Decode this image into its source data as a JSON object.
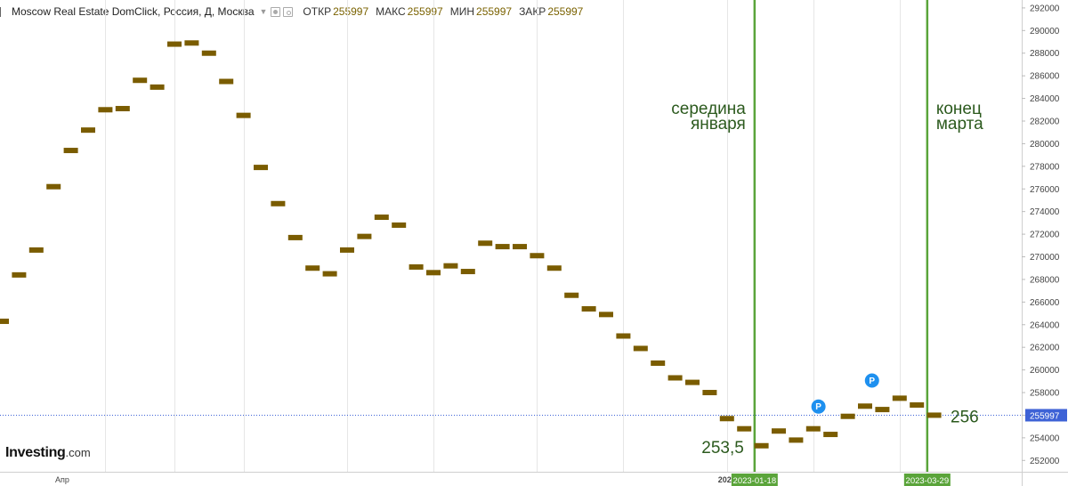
{
  "header": {
    "title": "Moscow Real Estate DomClick, Россия, Д, Москва",
    "open_label": "ОТКР",
    "open_value": "255997",
    "high_label": "МАКС",
    "high_value": "255997",
    "low_label": "МИН",
    "low_value": "255997",
    "close_label": "ЗАКР",
    "close_value": "255997"
  },
  "logo": {
    "brand": "Investing",
    "suffix": ".com"
  },
  "colors": {
    "bar": "#7a5c00",
    "vline": "#5aa43a",
    "annotation_text": "#2c5a1e",
    "last_price": "#3d62d6",
    "pin": "#1e90ef",
    "grid": "#e6e6e6"
  },
  "annotations": {
    "mid_january_line1": "середина",
    "mid_january_line2": "января",
    "end_march_line1": "конец",
    "end_march_line2": "марта",
    "low_value": "253,5",
    "last_value": "256"
  },
  "markers": {
    "pin_label": "P"
  },
  "chart_data": {
    "type": "line",
    "style": "horizontal-tick markers",
    "ylim": [
      251000,
      292700
    ],
    "y_ticks": [
      252000,
      254000,
      256000,
      258000,
      260000,
      262000,
      264000,
      266000,
      268000,
      270000,
      272000,
      274000,
      276000,
      278000,
      280000,
      282000,
      284000,
      286000,
      288000,
      290000,
      292000
    ],
    "x_labels": [
      {
        "label": "Апр",
        "index": 3.5
      },
      {
        "label": "2023",
        "index": 42
      }
    ],
    "highlighted_dates": [
      {
        "label": "2023-01-18",
        "index": 43.6
      },
      {
        "label": "2023-03-29",
        "index": 53.6
      }
    ],
    "last_price": 255997,
    "values": [
      264300,
      268400,
      270600,
      276200,
      279400,
      281200,
      283000,
      283100,
      285600,
      285000,
      288800,
      288900,
      288000,
      285500,
      282500,
      277900,
      274700,
      271700,
      269000,
      268500,
      270600,
      271800,
      273500,
      272800,
      269100,
      268600,
      269200,
      268700,
      271200,
      270900,
      270900,
      270100,
      269000,
      266600,
      265400,
      264900,
      263000,
      261900,
      260600,
      259300,
      258900,
      258000,
      255700,
      254800,
      253300,
      254600,
      253800,
      254800,
      254300,
      255900,
      256800,
      256500,
      257500,
      256900,
      256000
    ],
    "pins": [
      {
        "index": 47.3,
        "value": 255900
      },
      {
        "index": 50.4,
        "value": 258200
      }
    ],
    "grid": "vertical only",
    "legend": "none"
  }
}
